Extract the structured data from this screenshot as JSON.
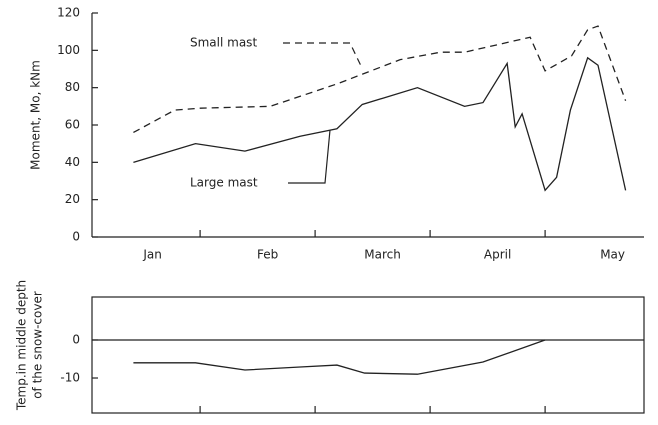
{
  "chart_data": [
    {
      "type": "line",
      "ylabel": "Moment, Mo, kNm",
      "categories": [
        "Jan",
        "Feb",
        "March",
        "April",
        "May"
      ],
      "xlim": [
        0.06,
        4.86
      ],
      "xticks": [
        1,
        2,
        3,
        4
      ],
      "ylim": [
        0,
        120
      ],
      "yticks": [
        0,
        20,
        40,
        60,
        80,
        100,
        120
      ],
      "series": [
        {
          "name": "Small mast",
          "color": "#222",
          "dash": true,
          "x": [
            0.42,
            0.78,
            1.0,
            1.61,
            2.19,
            2.74,
            3.09,
            3.3,
            3.87,
            4.0,
            4.23,
            4.37,
            4.46,
            4.7
          ],
          "values": [
            56,
            68,
            69,
            70,
            82,
            95,
            99,
            99,
            107,
            89,
            97,
            111,
            113,
            73
          ]
        },
        {
          "name": "Large mast",
          "color": "#222",
          "dash": false,
          "x": [
            0.42,
            0.96,
            1.39,
            1.87,
            2.19,
            2.41,
            2.89,
            3.3,
            3.46,
            3.67,
            3.74,
            3.8,
            4.0,
            4.1,
            4.22,
            4.37,
            4.46,
            4.7
          ],
          "values": [
            40,
            50,
            46,
            54,
            58,
            71,
            80,
            70,
            72,
            93,
            59,
            66,
            25,
            32,
            68,
            96,
            92,
            25
          ]
        }
      ]
    },
    {
      "type": "line",
      "ylabel": [
        "Temp.in middle depth",
        "of the snow-cover"
      ],
      "xlim": [
        0.06,
        4.86
      ],
      "xticks": [
        1,
        2,
        3,
        4
      ],
      "ylim": [
        -19.2,
        11.3
      ],
      "yticks": [
        0,
        -10
      ],
      "series": [
        {
          "color": "#222",
          "dash": false,
          "x": [
            0.42,
            0.96,
            1.39,
            1.87,
            2.19,
            2.43,
            2.89,
            3.46,
            4.0
          ],
          "values": [
            -6,
            -6,
            -7.9,
            -7.1,
            -6.6,
            -8.7,
            -9,
            -5.8,
            0
          ]
        }
      ]
    }
  ]
}
